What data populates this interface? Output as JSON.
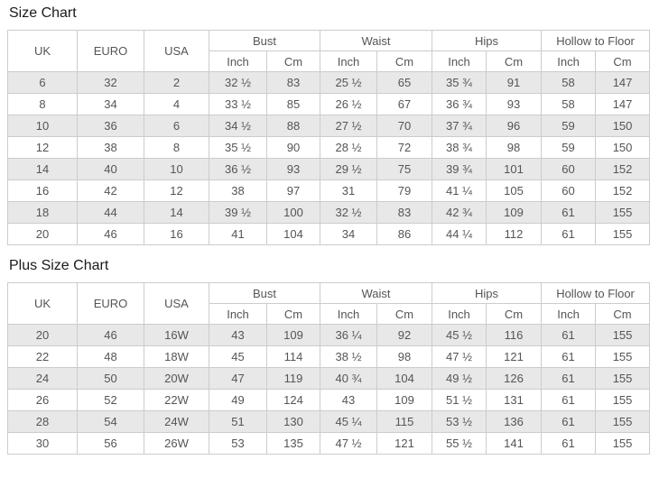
{
  "colors": {
    "row_stripe": "#e8e8e8",
    "table_border": "#cccccc",
    "cell_text": "#555555",
    "title_text": "#1a1a1a"
  },
  "tables": [
    {
      "title": "Size Chart",
      "header": {
        "size_system_columns": [
          "UK",
          "EURO",
          "USA"
        ],
        "measurement_groups": [
          "Bust",
          "Waist",
          "Hips",
          "Hollow to Floor"
        ],
        "unit_columns": [
          "Inch",
          "Cm"
        ]
      },
      "rows": [
        [
          "6",
          "32",
          "2",
          "32 ½",
          "83",
          "25 ½",
          "65",
          "35 ¾",
          "91",
          "58",
          "147"
        ],
        [
          "8",
          "34",
          "4",
          "33 ½",
          "85",
          "26 ½",
          "67",
          "36 ¾",
          "93",
          "58",
          "147"
        ],
        [
          "10",
          "36",
          "6",
          "34 ½",
          "88",
          "27 ½",
          "70",
          "37 ¾",
          "96",
          "59",
          "150"
        ],
        [
          "12",
          "38",
          "8",
          "35 ½",
          "90",
          "28 ½",
          "72",
          "38 ¾",
          "98",
          "59",
          "150"
        ],
        [
          "14",
          "40",
          "10",
          "36 ½",
          "93",
          "29 ½",
          "75",
          "39 ¾",
          "101",
          "60",
          "152"
        ],
        [
          "16",
          "42",
          "12",
          "38",
          "97",
          "31",
          "79",
          "41 ¼",
          "105",
          "60",
          "152"
        ],
        [
          "18",
          "44",
          "14",
          "39 ½",
          "100",
          "32 ½",
          "83",
          "42 ¾",
          "109",
          "61",
          "155"
        ],
        [
          "20",
          "46",
          "16",
          "41",
          "104",
          "34",
          "86",
          "44 ¼",
          "112",
          "61",
          "155"
        ]
      ]
    },
    {
      "title": "Plus Size Chart",
      "header": {
        "size_system_columns": [
          "UK",
          "EURO",
          "USA"
        ],
        "measurement_groups": [
          "Bust",
          "Waist",
          "Hips",
          "Hollow to Floor"
        ],
        "unit_columns": [
          "Inch",
          "Cm"
        ]
      },
      "rows": [
        [
          "20",
          "46",
          "16W",
          "43",
          "109",
          "36 ¼",
          "92",
          "45 ½",
          "116",
          "61",
          "155"
        ],
        [
          "22",
          "48",
          "18W",
          "45",
          "114",
          "38 ½",
          "98",
          "47 ½",
          "121",
          "61",
          "155"
        ],
        [
          "24",
          "50",
          "20W",
          "47",
          "119",
          "40 ¾",
          "104",
          "49 ½",
          "126",
          "61",
          "155"
        ],
        [
          "26",
          "52",
          "22W",
          "49",
          "124",
          "43",
          "109",
          "51 ½",
          "131",
          "61",
          "155"
        ],
        [
          "28",
          "54",
          "24W",
          "51",
          "130",
          "45 ¼",
          "115",
          "53 ½",
          "136",
          "61",
          "155"
        ],
        [
          "30",
          "56",
          "26W",
          "53",
          "135",
          "47 ½",
          "121",
          "55 ½",
          "141",
          "61",
          "155"
        ]
      ]
    }
  ]
}
